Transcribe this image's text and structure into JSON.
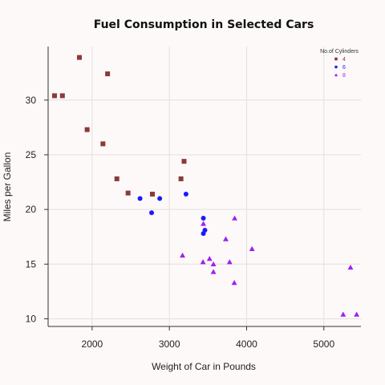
{
  "chart_data": {
    "type": "scatter",
    "title": "Fuel Consumption in Selected Cars",
    "xlabel": "Weight of Car in Pounds",
    "ylabel": "Miles per Gallon",
    "xlim": [
      1430,
      5480
    ],
    "ylim": [
      9.3,
      34.9
    ],
    "xticks": [
      2000,
      3000,
      4000,
      5000
    ],
    "yticks": [
      10,
      15,
      20,
      25,
      30
    ],
    "grid": true,
    "legend": {
      "title": "No.of Cylinders",
      "placement": "top-right",
      "entries": [
        "4",
        "6",
        "8"
      ]
    },
    "series": [
      {
        "name": "4",
        "marker": "square",
        "color": "#8b3a3a",
        "points": [
          {
            "x": 1513,
            "y": 30.4
          },
          {
            "x": 1615,
            "y": 30.4
          },
          {
            "x": 1835,
            "y": 33.9
          },
          {
            "x": 1935,
            "y": 27.3
          },
          {
            "x": 2140,
            "y": 26.0
          },
          {
            "x": 2200,
            "y": 32.4
          },
          {
            "x": 2320,
            "y": 22.8
          },
          {
            "x": 2465,
            "y": 21.5
          },
          {
            "x": 2780,
            "y": 21.4
          },
          {
            "x": 3150,
            "y": 22.8
          },
          {
            "x": 3190,
            "y": 24.4
          }
        ]
      },
      {
        "name": "6",
        "marker": "circle",
        "color": "#1a1aff",
        "points": [
          {
            "x": 2620,
            "y": 21.0
          },
          {
            "x": 2770,
            "y": 19.7
          },
          {
            "x": 2875,
            "y": 21.0
          },
          {
            "x": 3215,
            "y": 21.4
          },
          {
            "x": 3440,
            "y": 19.2
          },
          {
            "x": 3440,
            "y": 17.8
          },
          {
            "x": 3460,
            "y": 18.1
          }
        ]
      },
      {
        "name": "8",
        "marker": "triangle",
        "color": "#a020f0",
        "points": [
          {
            "x": 3170,
            "y": 15.8
          },
          {
            "x": 3435,
            "y": 15.2
          },
          {
            "x": 3440,
            "y": 18.7
          },
          {
            "x": 3520,
            "y": 15.5
          },
          {
            "x": 3570,
            "y": 15.0
          },
          {
            "x": 3570,
            "y": 14.3
          },
          {
            "x": 3730,
            "y": 17.3
          },
          {
            "x": 3780,
            "y": 15.2
          },
          {
            "x": 3840,
            "y": 13.3
          },
          {
            "x": 3845,
            "y": 19.2
          },
          {
            "x": 4070,
            "y": 16.4
          },
          {
            "x": 5250,
            "y": 10.4
          },
          {
            "x": 5345,
            "y": 14.7
          },
          {
            "x": 5424,
            "y": 10.4
          }
        ]
      }
    ]
  }
}
